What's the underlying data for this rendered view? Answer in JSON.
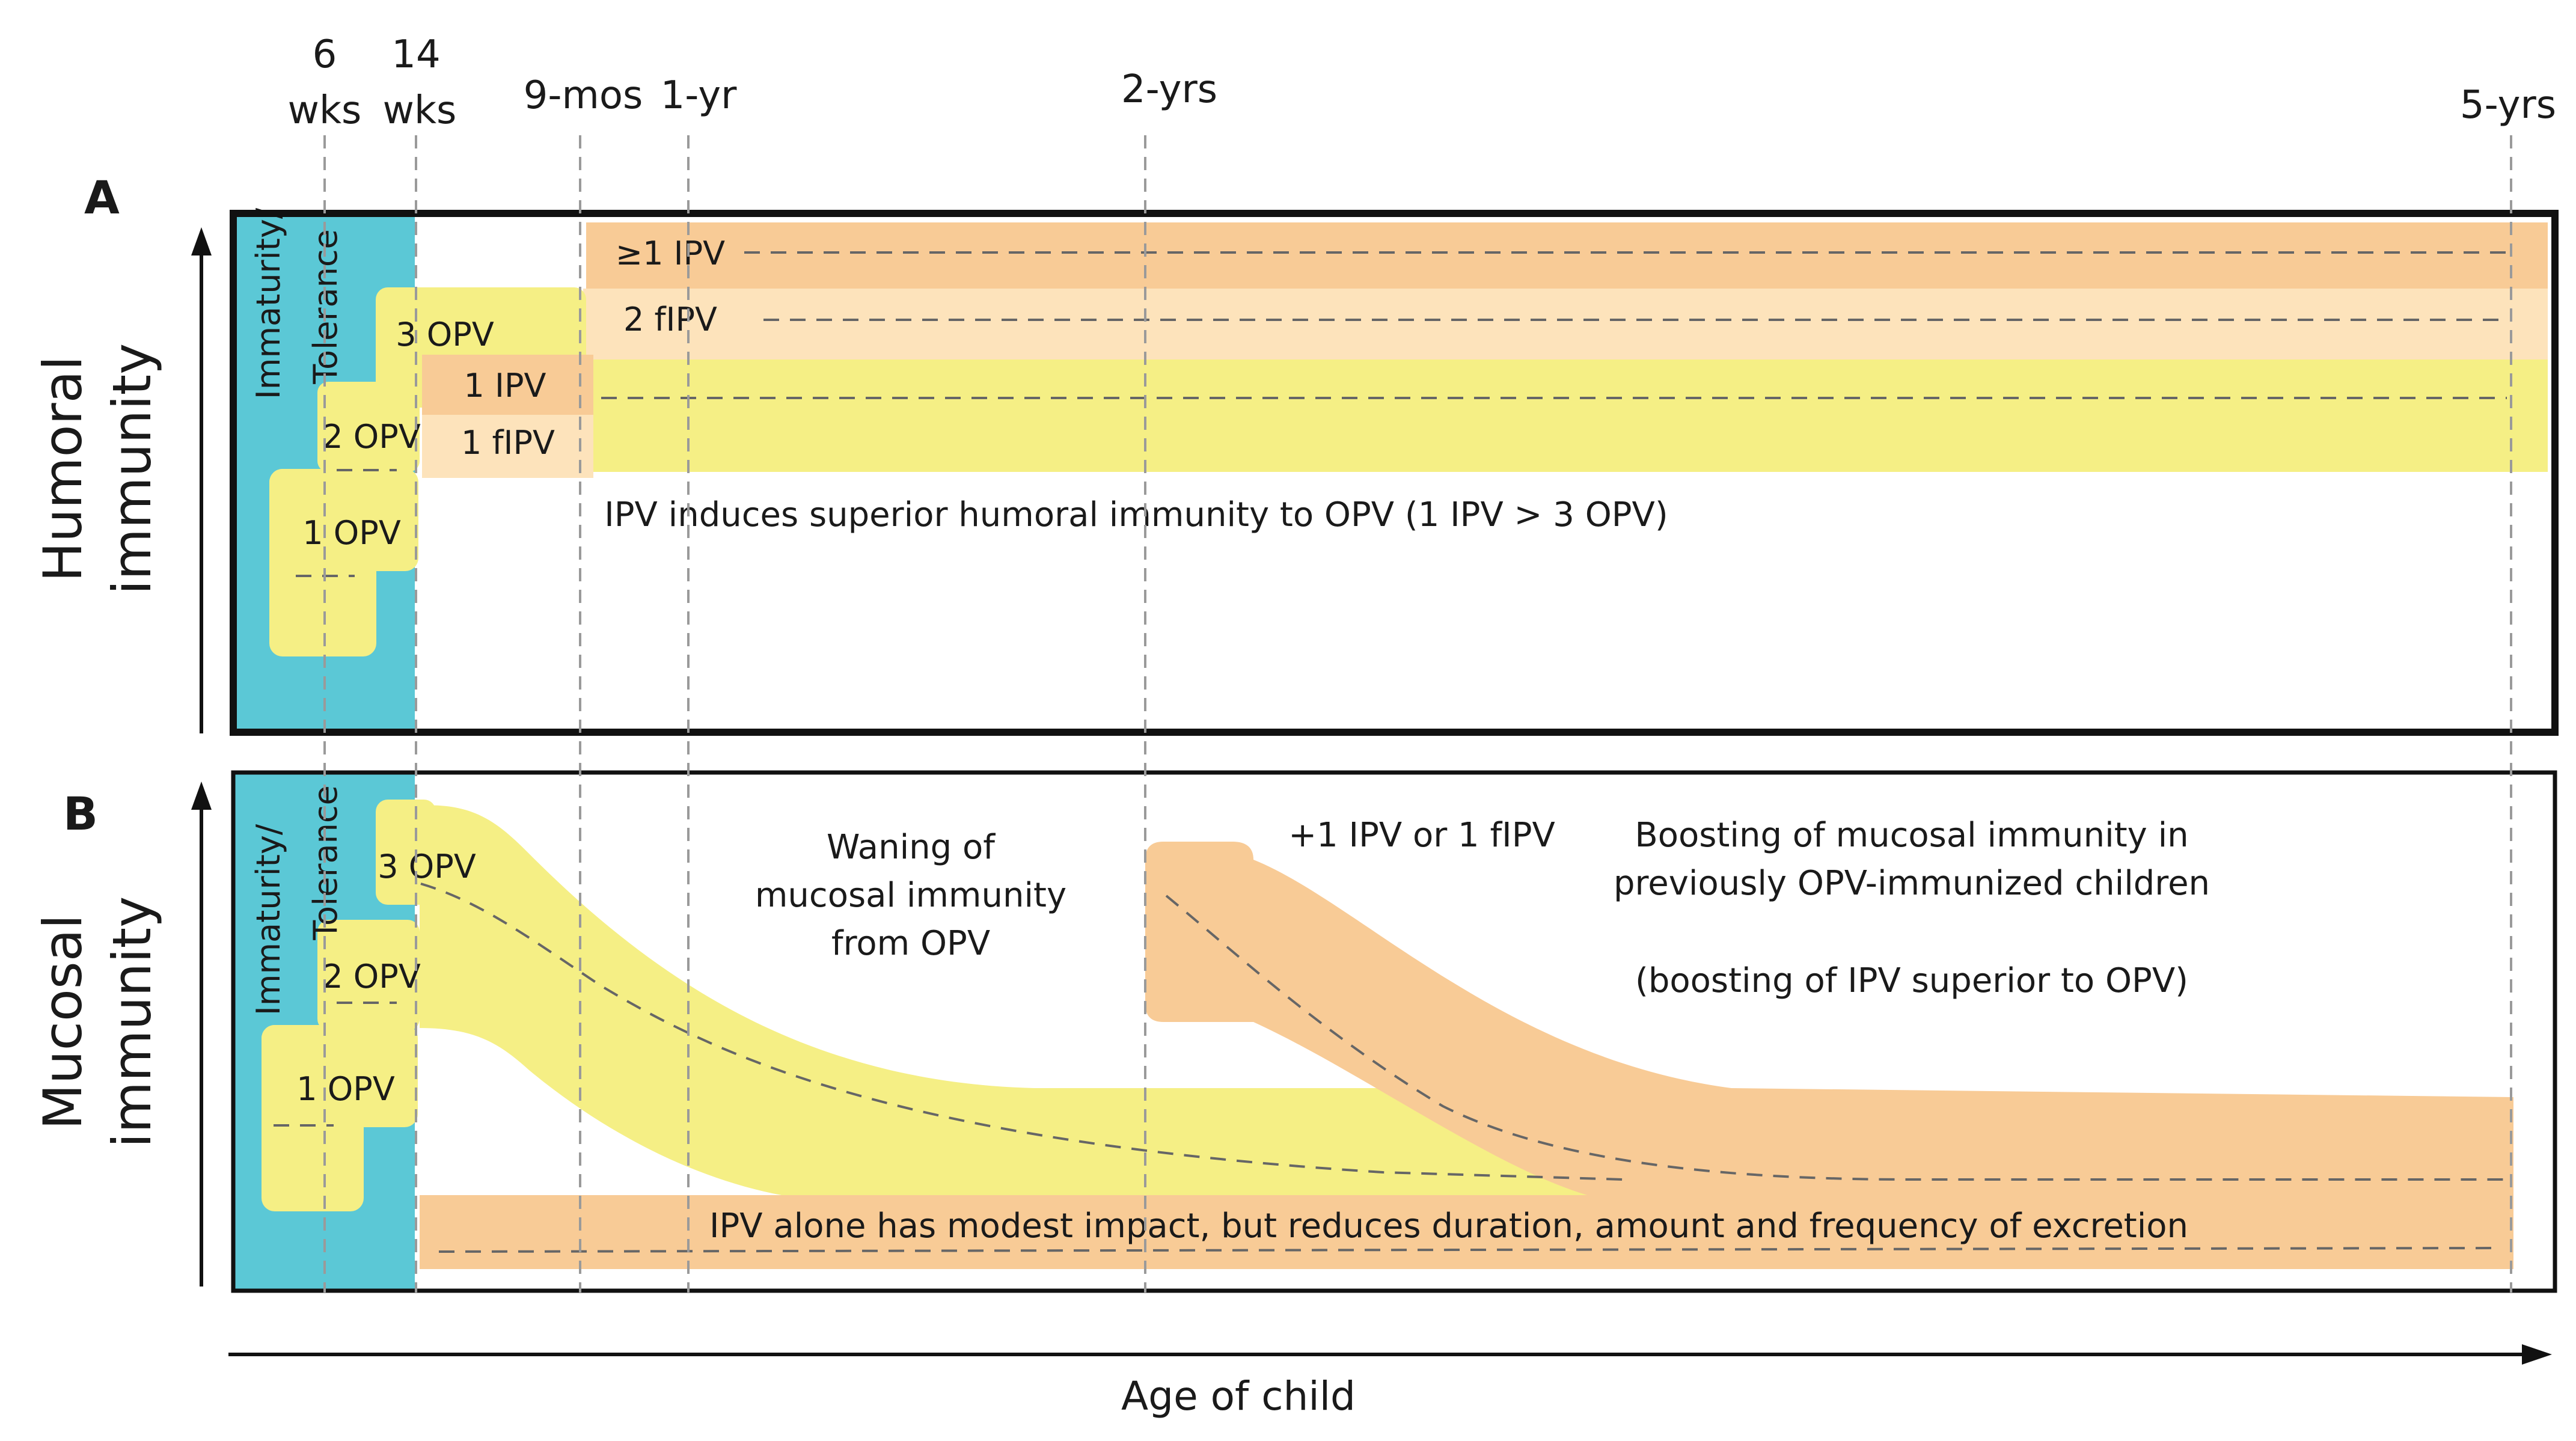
{
  "figure": {
    "x_ticks": [
      {
        "line1": "6",
        "line2": "wks"
      },
      {
        "line1": "14",
        "line2": "wks"
      },
      {
        "line1": "9-mos",
        "line2": ""
      },
      {
        "line1": "1-yr",
        "line2": ""
      },
      {
        "line1": "2-yrs",
        "line2": ""
      },
      {
        "line1": "5-yrs",
        "line2": ""
      }
    ],
    "x_axis_label": "Age of child",
    "colors": {
      "immaturity": "#5bc8d6",
      "opv": "#f5ef85",
      "ipv": "#f8cb96",
      "fipv": "#fde3bb",
      "frame": "#111111"
    }
  },
  "panel_a": {
    "letter": "A",
    "y_label_line1": "Humoral",
    "y_label_line2": "immunity",
    "immaturity_line1": "Immaturity/",
    "immaturity_line2": "Tolerance",
    "labels": {
      "opv1": "1 OPV",
      "opv2": "2 OPV",
      "opv3": "3 OPV",
      "ipv1": "1 IPV",
      "fipv1": "1 fIPV",
      "ipv_many": "≥1 IPV",
      "fipv2": "2 fIPV"
    },
    "note": "IPV induces superior humoral immunity to OPV (1 IPV > 3 OPV)"
  },
  "panel_b": {
    "letter": "B",
    "y_label_line1": "Mucosal",
    "y_label_line2": "immunity",
    "immaturity_line1": "Immaturity/",
    "immaturity_line2": "Tolerance",
    "labels": {
      "opv1": "1 OPV",
      "opv2": "2 OPV",
      "opv3": "3 OPV"
    },
    "waning_line1": "Waning of",
    "waning_line2": "mucosal immunity",
    "waning_line3": "from OPV",
    "boost_dose": "+1 IPV or 1 fIPV",
    "boost_line1": "Boosting of mucosal immunity in",
    "boost_line2": "previously OPV-immunized children",
    "boost_note": "(boosting of IPV superior to OPV)",
    "ipv_alone": "IPV alone has modest impact, but reduces duration, amount and frequency of excretion"
  }
}
